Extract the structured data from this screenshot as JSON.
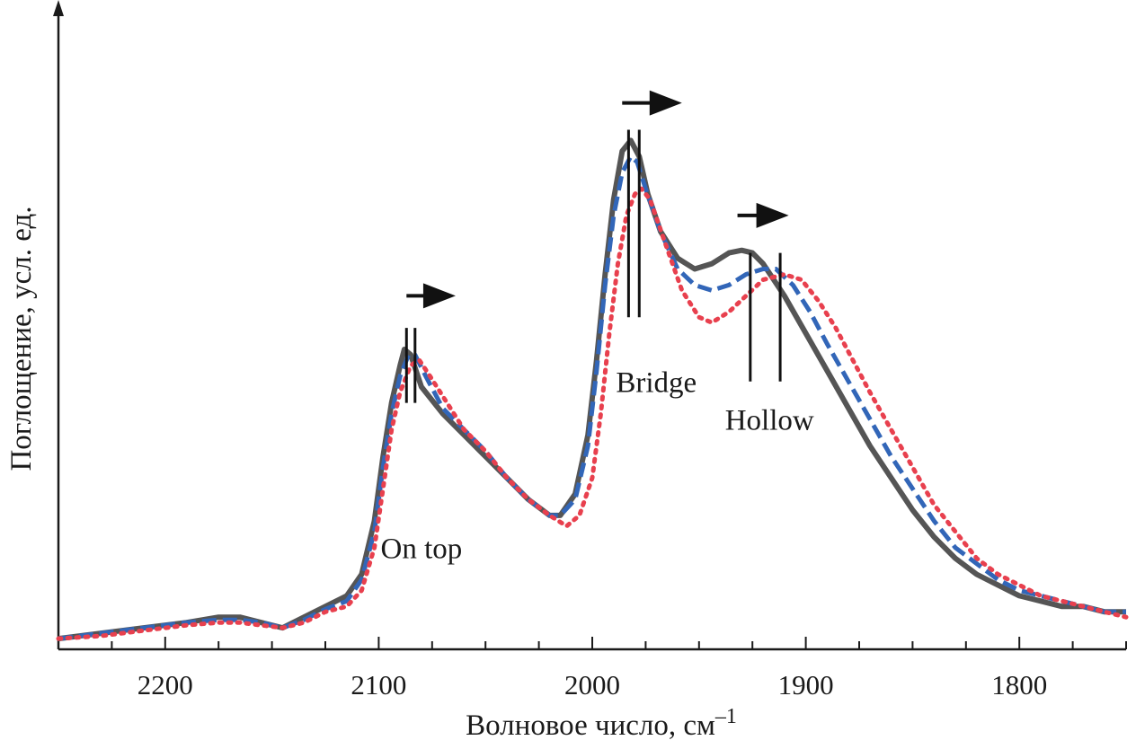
{
  "chart_data": {
    "type": "line",
    "xlabel": "Волновое число, см",
    "xlabel_superscript": "–1",
    "ylabel": "Поглощение, усл. ед.",
    "x_reversed": true,
    "xlim": [
      2250,
      1750
    ],
    "ylim": [
      0,
      1.12
    ],
    "x_ticks": [
      2200,
      2100,
      2000,
      1900,
      1800
    ],
    "x_tick_labels": [
      "2200",
      "2100",
      "2000",
      "1900",
      "1800"
    ],
    "y_ticks_shown": false,
    "grid": false,
    "legend": "none",
    "annotations": [
      {
        "text": "On top",
        "x": 2080,
        "y": 0.17
      },
      {
        "text": "Bridge",
        "x": 1970,
        "y": 0.48
      },
      {
        "text": "Hollow",
        "x": 1917,
        "y": 0.41
      }
    ],
    "peak_markers": [
      {
        "label": "On top",
        "x": [
          2087,
          2083
        ],
        "y_range": [
          0.46,
          0.6
        ]
      },
      {
        "label": "Bridge",
        "x": [
          1983,
          1978
        ],
        "y_range": [
          0.62,
          0.97
        ]
      },
      {
        "label": "Hollow",
        "x": [
          1926,
          1912
        ],
        "y_range": [
          0.5,
          0.74
        ]
      }
    ],
    "shift_arrows": [
      {
        "from_x": 2087,
        "to_x": 2064,
        "y": 0.66
      },
      {
        "from_x": 1986,
        "to_x": 1958,
        "y": 1.02
      },
      {
        "from_x": 1932,
        "to_x": 1908,
        "y": 0.81
      }
    ],
    "series": [
      {
        "color": "#555555",
        "style": "solid",
        "x": [
          2250,
          2230,
          2210,
          2190,
          2175,
          2165,
          2155,
          2145,
          2135,
          2125,
          2115,
          2108,
          2102,
          2098,
          2094,
          2090,
          2088,
          2085,
          2080,
          2070,
          2060,
          2050,
          2040,
          2030,
          2020,
          2015,
          2008,
          2002,
          1998,
          1994,
          1990,
          1986,
          1982,
          1978,
          1974,
          1968,
          1960,
          1952,
          1944,
          1936,
          1930,
          1925,
          1920,
          1910,
          1900,
          1890,
          1880,
          1870,
          1860,
          1850,
          1840,
          1830,
          1820,
          1810,
          1800,
          1790,
          1780,
          1770,
          1760,
          1750
        ],
        "y": [
          0.02,
          0.03,
          0.04,
          0.05,
          0.06,
          0.06,
          0.05,
          0.04,
          0.06,
          0.08,
          0.1,
          0.14,
          0.24,
          0.36,
          0.46,
          0.53,
          0.56,
          0.55,
          0.49,
          0.44,
          0.4,
          0.36,
          0.32,
          0.28,
          0.25,
          0.25,
          0.29,
          0.4,
          0.54,
          0.7,
          0.84,
          0.93,
          0.95,
          0.92,
          0.85,
          0.78,
          0.73,
          0.71,
          0.72,
          0.74,
          0.745,
          0.74,
          0.72,
          0.66,
          0.59,
          0.52,
          0.45,
          0.38,
          0.32,
          0.26,
          0.21,
          0.17,
          0.14,
          0.12,
          0.1,
          0.09,
          0.08,
          0.08,
          0.07,
          0.07
        ]
      },
      {
        "color": "#3266b8",
        "style": "dashed",
        "x": [
          2250,
          2230,
          2210,
          2190,
          2175,
          2165,
          2155,
          2145,
          2135,
          2125,
          2115,
          2108,
          2102,
          2098,
          2094,
          2090,
          2086,
          2083,
          2078,
          2070,
          2060,
          2050,
          2040,
          2030,
          2020,
          2015,
          2008,
          2002,
          1998,
          1994,
          1990,
          1986,
          1982,
          1979,
          1975,
          1968,
          1960,
          1952,
          1944,
          1936,
          1928,
          1920,
          1914,
          1906,
          1898,
          1890,
          1880,
          1870,
          1860,
          1850,
          1840,
          1830,
          1820,
          1810,
          1800,
          1790,
          1780,
          1770,
          1760,
          1750
        ],
        "y": [
          0.02,
          0.03,
          0.04,
          0.05,
          0.055,
          0.055,
          0.05,
          0.04,
          0.055,
          0.075,
          0.09,
          0.13,
          0.22,
          0.34,
          0.44,
          0.51,
          0.55,
          0.55,
          0.51,
          0.45,
          0.41,
          0.37,
          0.32,
          0.28,
          0.25,
          0.25,
          0.28,
          0.38,
          0.52,
          0.68,
          0.81,
          0.89,
          0.92,
          0.91,
          0.86,
          0.78,
          0.71,
          0.68,
          0.67,
          0.68,
          0.7,
          0.71,
          0.71,
          0.68,
          0.63,
          0.57,
          0.5,
          0.43,
          0.36,
          0.3,
          0.24,
          0.19,
          0.16,
          0.13,
          0.11,
          0.1,
          0.09,
          0.08,
          0.07,
          0.07
        ]
      },
      {
        "color": "#e8404e",
        "style": "dotted",
        "x": [
          2250,
          2230,
          2210,
          2190,
          2175,
          2165,
          2155,
          2145,
          2135,
          2125,
          2115,
          2108,
          2102,
          2098,
          2094,
          2090,
          2085,
          2081,
          2076,
          2068,
          2060,
          2050,
          2040,
          2030,
          2020,
          2012,
          2006,
          2000,
          1996,
          1992,
          1988,
          1984,
          1980,
          1977,
          1973,
          1966,
          1958,
          1950,
          1944,
          1936,
          1928,
          1920,
          1910,
          1902,
          1894,
          1886,
          1878,
          1870,
          1860,
          1850,
          1840,
          1830,
          1820,
          1810,
          1800,
          1790,
          1780,
          1770,
          1760,
          1750
        ],
        "y": [
          0.02,
          0.025,
          0.035,
          0.045,
          0.05,
          0.05,
          0.045,
          0.04,
          0.05,
          0.07,
          0.08,
          0.11,
          0.19,
          0.3,
          0.41,
          0.48,
          0.53,
          0.54,
          0.51,
          0.46,
          0.41,
          0.37,
          0.32,
          0.28,
          0.25,
          0.23,
          0.25,
          0.32,
          0.44,
          0.59,
          0.72,
          0.81,
          0.85,
          0.86,
          0.84,
          0.76,
          0.67,
          0.62,
          0.61,
          0.63,
          0.66,
          0.69,
          0.7,
          0.69,
          0.65,
          0.6,
          0.54,
          0.48,
          0.41,
          0.34,
          0.27,
          0.22,
          0.17,
          0.14,
          0.12,
          0.1,
          0.09,
          0.08,
          0.07,
          0.06
        ]
      }
    ]
  }
}
